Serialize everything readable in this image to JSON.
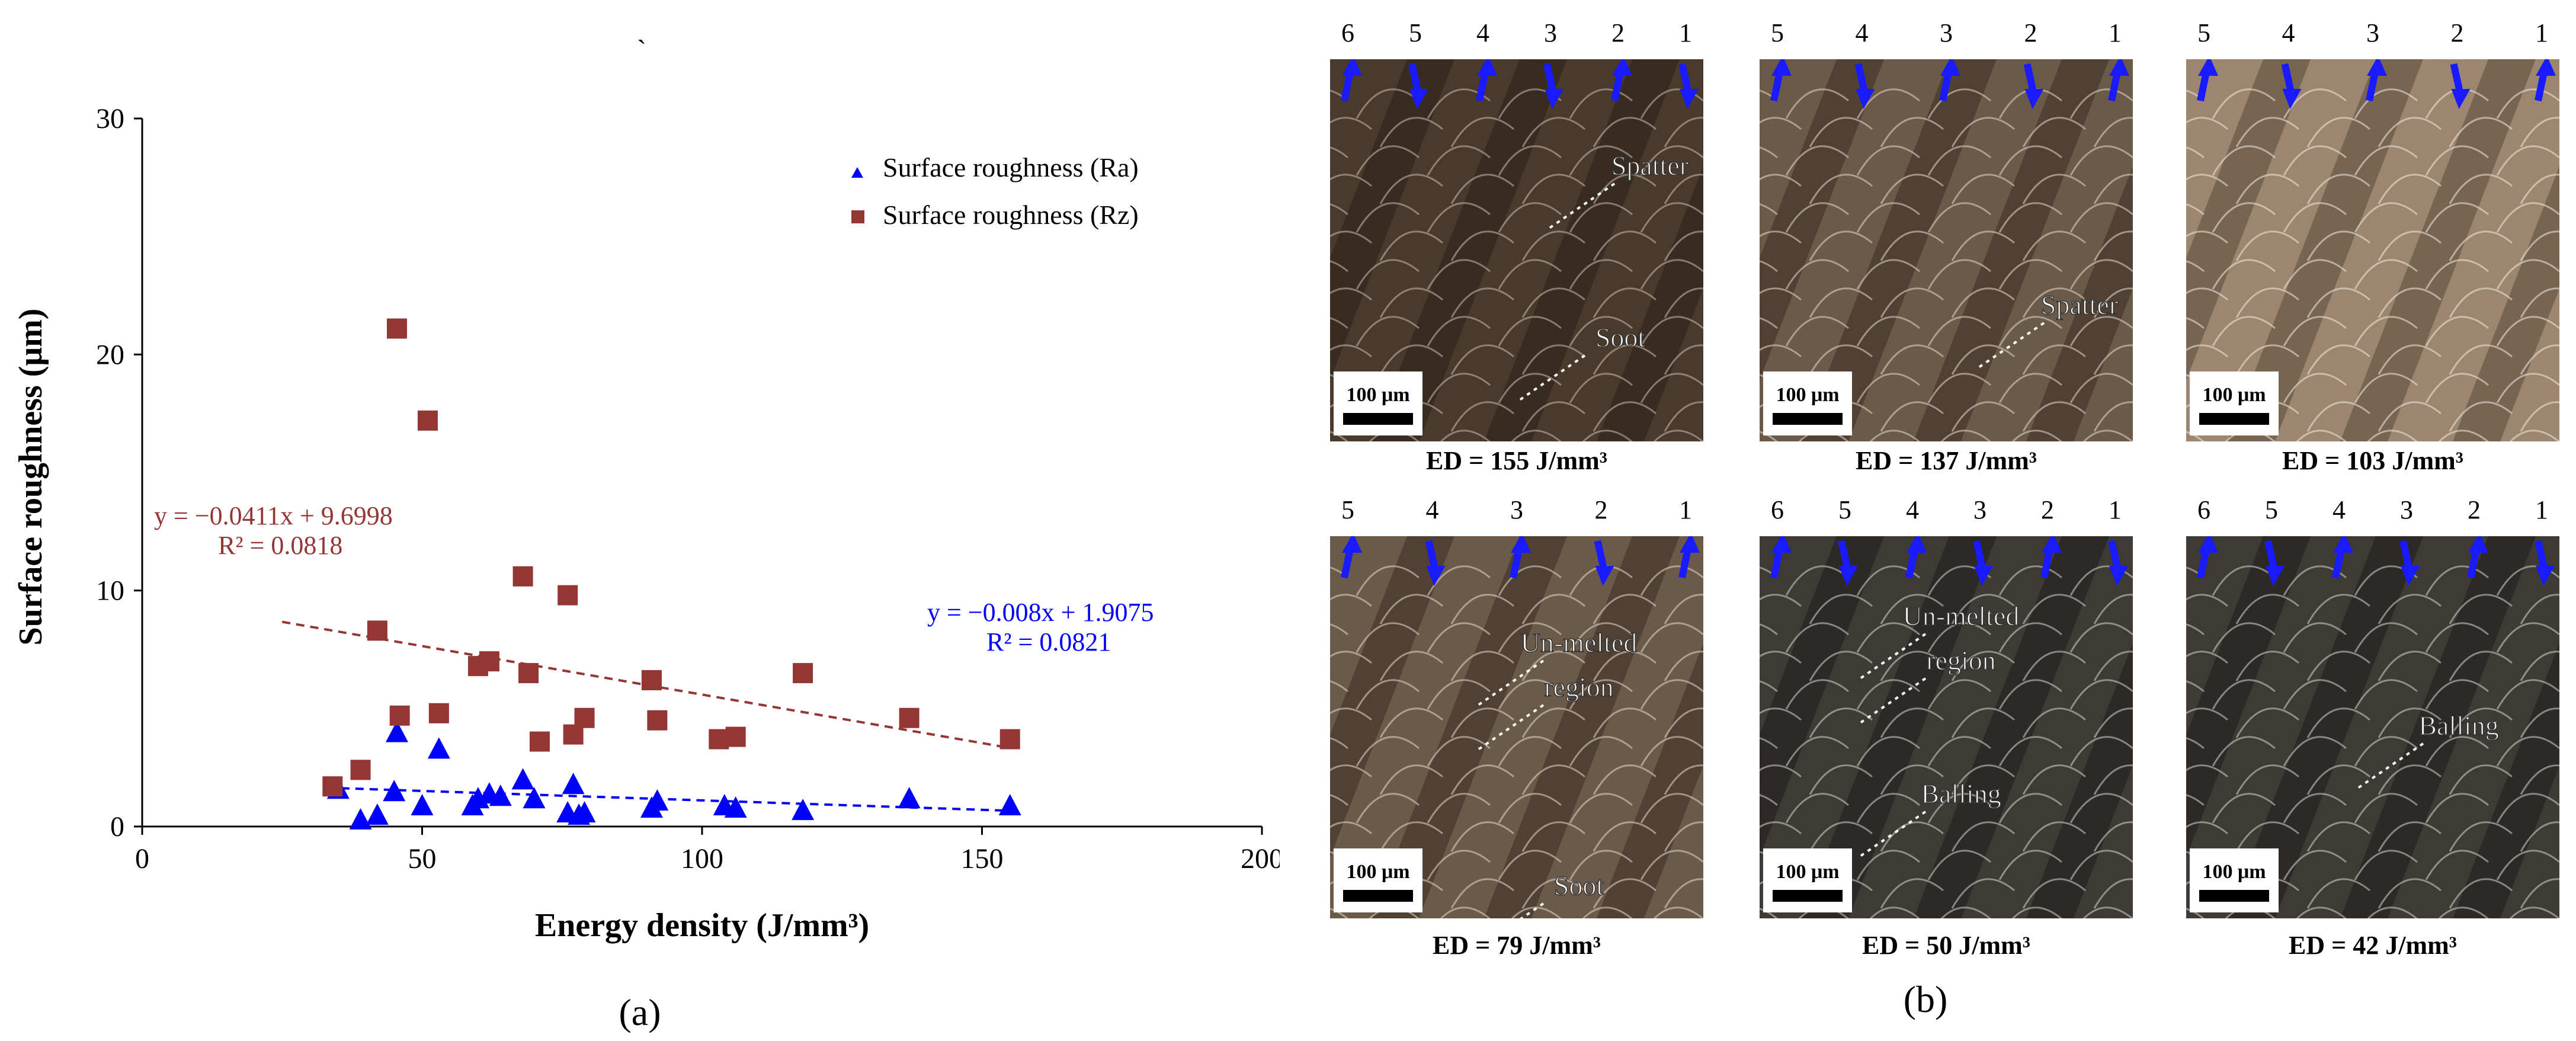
{
  "stray_mark": "`",
  "panel_labels": [
    "(a)",
    "(b)"
  ],
  "colors": {
    "ra": "#0000ff",
    "rz": "#943634",
    "axis": "#000000"
  },
  "chart_data": {
    "type": "scatter",
    "xlabel": "Energy density (J/mm³)",
    "ylabel": "Surface roughness (μm)",
    "xlim": [
      0,
      200
    ],
    "ylim": [
      0,
      30
    ],
    "xticks": [
      0,
      50,
      100,
      150,
      200
    ],
    "yticks": [
      0,
      10,
      20,
      30
    ],
    "legend_position": "top-right",
    "series": [
      {
        "name": "Surface roughness (Ra)",
        "marker": "triangle",
        "color": "#0000ff",
        "points": [
          [
            35,
            1.6
          ],
          [
            39,
            0.3
          ],
          [
            42,
            0.5
          ],
          [
            45,
            1.5
          ],
          [
            45.5,
            4.0
          ],
          [
            50,
            0.9
          ],
          [
            53,
            3.3
          ],
          [
            59,
            0.9
          ],
          [
            60,
            1.2
          ],
          [
            62,
            1.4
          ],
          [
            64,
            1.3
          ],
          [
            68,
            2.0
          ],
          [
            70,
            1.2
          ],
          [
            76,
            0.6
          ],
          [
            77,
            1.8
          ],
          [
            78,
            0.5
          ],
          [
            79,
            0.6
          ],
          [
            91,
            0.8
          ],
          [
            92,
            1.1
          ],
          [
            104,
            0.9
          ],
          [
            106,
            0.8
          ],
          [
            118,
            0.7
          ],
          [
            137,
            1.2
          ],
          [
            155,
            0.9
          ]
        ],
        "trendline": {
          "equation": "y = −0.008x + 1.9075",
          "r2": "R² = 0.0821",
          "slope": -0.008,
          "intercept": 1.9075,
          "x_range": [
            33,
            155
          ]
        }
      },
      {
        "name": "Surface roughness (Rz)",
        "marker": "square",
        "color": "#943634",
        "points": [
          [
            34,
            1.7
          ],
          [
            39,
            2.4
          ],
          [
            42,
            8.3
          ],
          [
            45.5,
            21.1
          ],
          [
            46,
            4.7
          ],
          [
            51,
            17.2
          ],
          [
            53,
            4.8
          ],
          [
            60,
            6.8
          ],
          [
            62,
            7.0
          ],
          [
            68,
            10.6
          ],
          [
            69,
            6.5
          ],
          [
            71,
            3.6
          ],
          [
            76,
            9.8
          ],
          [
            77,
            3.9
          ],
          [
            79,
            4.6
          ],
          [
            91,
            6.2
          ],
          [
            92,
            4.5
          ],
          [
            103,
            3.7
          ],
          [
            106,
            3.8
          ],
          [
            118,
            6.5
          ],
          [
            137,
            4.6
          ],
          [
            155,
            3.7
          ]
        ],
        "trendline": {
          "equation": "y = −0.0411x + 9.6998",
          "r2": "R² = 0.0818",
          "slope": -0.0411,
          "intercept": 9.6998,
          "x_range": [
            25,
            155
          ]
        }
      }
    ]
  },
  "micrographs": [
    {
      "caption": "ED = 155 J/mm³",
      "scale_bar": "100 μm",
      "track_numbers": [
        "6",
        "5",
        "4",
        "3",
        "2",
        "1"
      ],
      "tone": "dark",
      "annotations": [
        "Spatter",
        "Soot"
      ]
    },
    {
      "caption": "ED = 137 J/mm³",
      "scale_bar": "100 μm",
      "track_numbers": [
        "5",
        "4",
        "3",
        "2",
        "1"
      ],
      "tone": "medium",
      "annotations": [
        "Spatter"
      ]
    },
    {
      "caption": "ED = 103 J/mm³",
      "scale_bar": "100 μm",
      "track_numbers": [
        "5",
        "4",
        "3",
        "2",
        "1"
      ],
      "tone": "light",
      "annotations": []
    },
    {
      "caption": "ED = 79 J/mm³",
      "scale_bar": "100 μm",
      "track_numbers": [
        "5",
        "4",
        "3",
        "2",
        "1"
      ],
      "tone": "medium",
      "annotations": [
        "Un-melted",
        "region",
        "Soot"
      ]
    },
    {
      "caption": "ED = 50 J/mm³",
      "scale_bar": "100 μm",
      "track_numbers": [
        "6",
        "5",
        "4",
        "3",
        "2",
        "1"
      ],
      "tone": "mixed",
      "annotations": [
        "Un-melted",
        "region",
        "Balling"
      ]
    },
    {
      "caption": "ED = 42 J/mm³",
      "scale_bar": "100 μm",
      "track_numbers": [
        "6",
        "5",
        "4",
        "3",
        "2",
        "1"
      ],
      "tone": "mixed",
      "annotations": [
        "Balling"
      ]
    }
  ]
}
